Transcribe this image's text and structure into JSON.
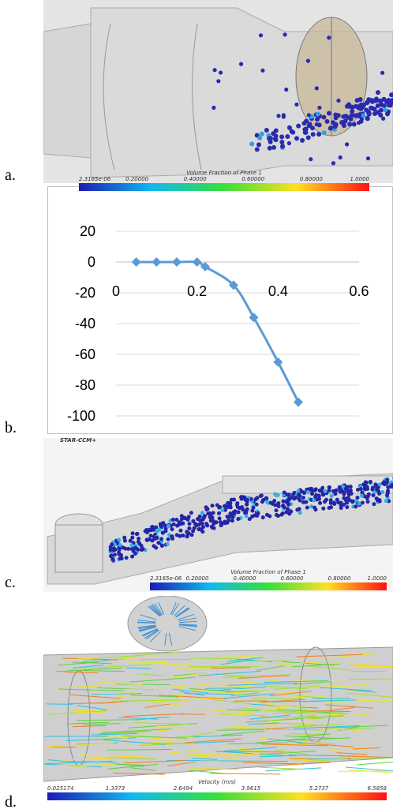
{
  "panel_labels": [
    "a.",
    "b.",
    "c.",
    "d."
  ],
  "panel_a": {
    "colorbar_title": "Volume Fraction of Phase 1",
    "colorbar_ticks": [
      "2.3165e-06",
      "0.20000",
      "0.40000",
      "0.60000",
      "0.80000",
      "1.0000"
    ]
  },
  "chart_data": {
    "type": "line",
    "x": [
      0.05,
      0.1,
      0.15,
      0.2,
      0.22,
      0.29,
      0.34,
      0.4,
      0.45
    ],
    "values": [
      0,
      0,
      0,
      0,
      -3,
      -15,
      -36,
      -65,
      -91
    ],
    "color": "#5b9bd5",
    "marker": "diamond",
    "xlim": [
      0,
      0.6
    ],
    "xticks": [
      0,
      0.2,
      0.4,
      0.6
    ],
    "ylim": [
      -100,
      20
    ],
    "yticks": [
      20,
      0,
      -20,
      -40,
      -60,
      -80,
      -100
    ],
    "grid": true
  },
  "panel_c": {
    "watermark": "STAR-CCM+",
    "colorbar_title": "Volume Fraction of Phase 1",
    "colorbar_ticks": [
      "2.3165e-06",
      "0.20000",
      "0.40000",
      "0.60000",
      "0.80000",
      "1.0000"
    ]
  },
  "panel_d": {
    "colorbar_title": "Velocity (m/s)",
    "colorbar_ticks": [
      "0.025174",
      "1.3373",
      "2.6494",
      "3.9615",
      "5.2737",
      "6.5858"
    ]
  }
}
